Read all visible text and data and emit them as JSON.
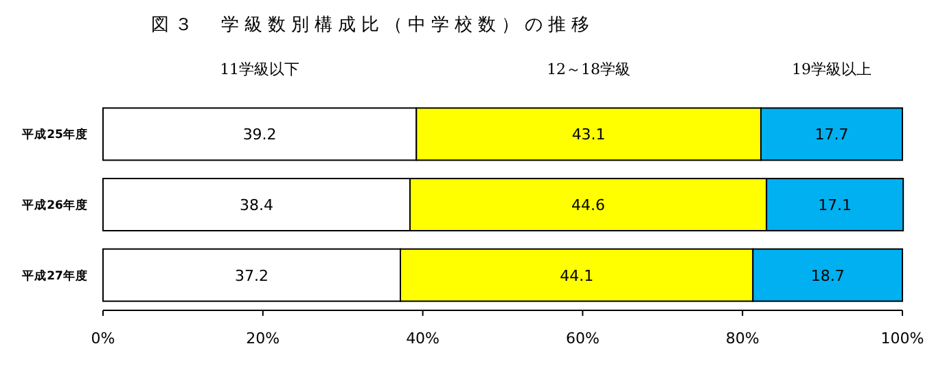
{
  "chart_data": {
    "type": "bar",
    "orientation": "horizontal",
    "stacked": true,
    "title": "図３　学級数別構成比（中学校数）の推移",
    "categories": [
      "平成25年度",
      "平成26年度",
      "平成27年度"
    ],
    "series": [
      {
        "name": "11学級以下",
        "color": "#ffffff",
        "values": [
          39.2,
          38.4,
          37.2
        ]
      },
      {
        "name": "12～18学級",
        "color": "#ffff00",
        "values": [
          43.1,
          44.6,
          44.1
        ]
      },
      {
        "name": "19学級以上",
        "color": "#00b0f0",
        "values": [
          17.7,
          17.1,
          18.7
        ]
      }
    ],
    "xlim": [
      0,
      100
    ],
    "xticks": [
      {
        "value": 0,
        "label": "0%"
      },
      {
        "value": 20,
        "label": "20%"
      },
      {
        "value": 40,
        "label": "40%"
      },
      {
        "value": 60,
        "label": "60%"
      },
      {
        "value": 80,
        "label": "80%"
      },
      {
        "value": 100,
        "label": "100%"
      }
    ],
    "data_labels": true,
    "legend": "top"
  }
}
